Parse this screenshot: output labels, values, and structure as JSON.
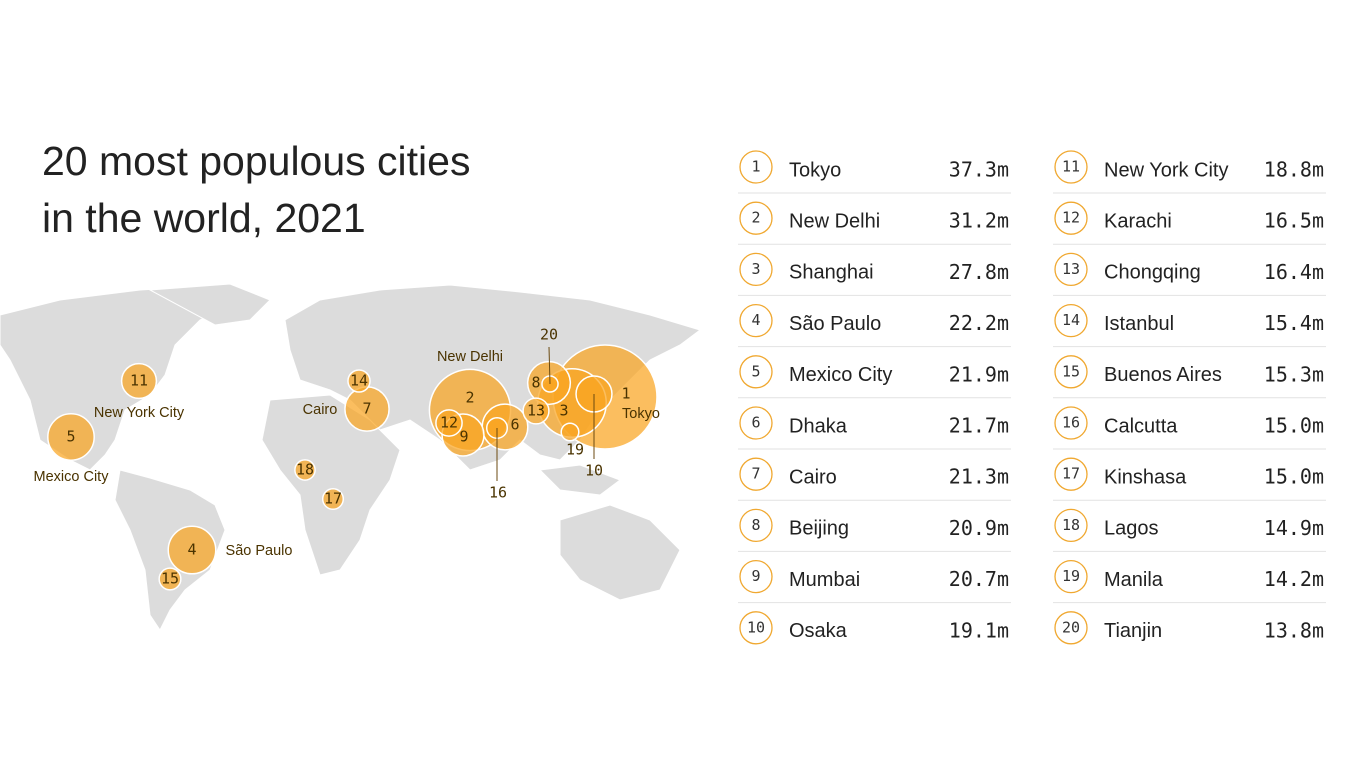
{
  "title": "20 most populous cities in the world, 2021",
  "cities": [
    {
      "rank": 1,
      "name": "Tokyo",
      "population": 37.3,
      "population_label": "37.3m"
    },
    {
      "rank": 2,
      "name": "New Delhi",
      "population": 31.2,
      "population_label": "31.2m"
    },
    {
      "rank": 3,
      "name": "Shanghai",
      "population": 27.8,
      "population_label": "27.8m"
    },
    {
      "rank": 4,
      "name": "São Paulo",
      "population": 22.2,
      "population_label": "22.2m"
    },
    {
      "rank": 5,
      "name": "Mexico City",
      "population": 21.9,
      "population_label": "21.9m"
    },
    {
      "rank": 6,
      "name": "Dhaka",
      "population": 21.7,
      "population_label": "21.7m"
    },
    {
      "rank": 7,
      "name": "Cairo",
      "population": 21.3,
      "population_label": "21.3m"
    },
    {
      "rank": 8,
      "name": "Beijing",
      "population": 20.9,
      "population_label": "20.9m"
    },
    {
      "rank": 9,
      "name": "Mumbai",
      "population": 20.7,
      "population_label": "20.7m"
    },
    {
      "rank": 10,
      "name": "Osaka",
      "population": 19.1,
      "population_label": "19.1m"
    },
    {
      "rank": 11,
      "name": "New York City",
      "population": 18.8,
      "population_label": "18.8m"
    },
    {
      "rank": 12,
      "name": "Karachi",
      "population": 16.5,
      "population_label": "16.5m"
    },
    {
      "rank": 13,
      "name": "Chongqing",
      "population": 16.4,
      "population_label": "16.4m"
    },
    {
      "rank": 14,
      "name": "Istanbul",
      "population": 15.4,
      "population_label": "15.4m"
    },
    {
      "rank": 15,
      "name": "Buenos Aires",
      "population": 15.3,
      "population_label": "15.3m"
    },
    {
      "rank": 16,
      "name": "Calcutta",
      "population": 15.0,
      "population_label": "15.0m"
    },
    {
      "rank": 17,
      "name": "Kinshasa",
      "population": 15.0,
      "population_label": "15.0m"
    },
    {
      "rank": 18,
      "name": "Lagos",
      "population": 14.9,
      "population_label": "14.9m"
    },
    {
      "rank": 19,
      "name": "Manila",
      "population": 14.2,
      "population_label": "14.2m"
    },
    {
      "rank": 20,
      "name": "Tianjin",
      "population": 13.8,
      "population_label": "13.8m"
    }
  ]
}
